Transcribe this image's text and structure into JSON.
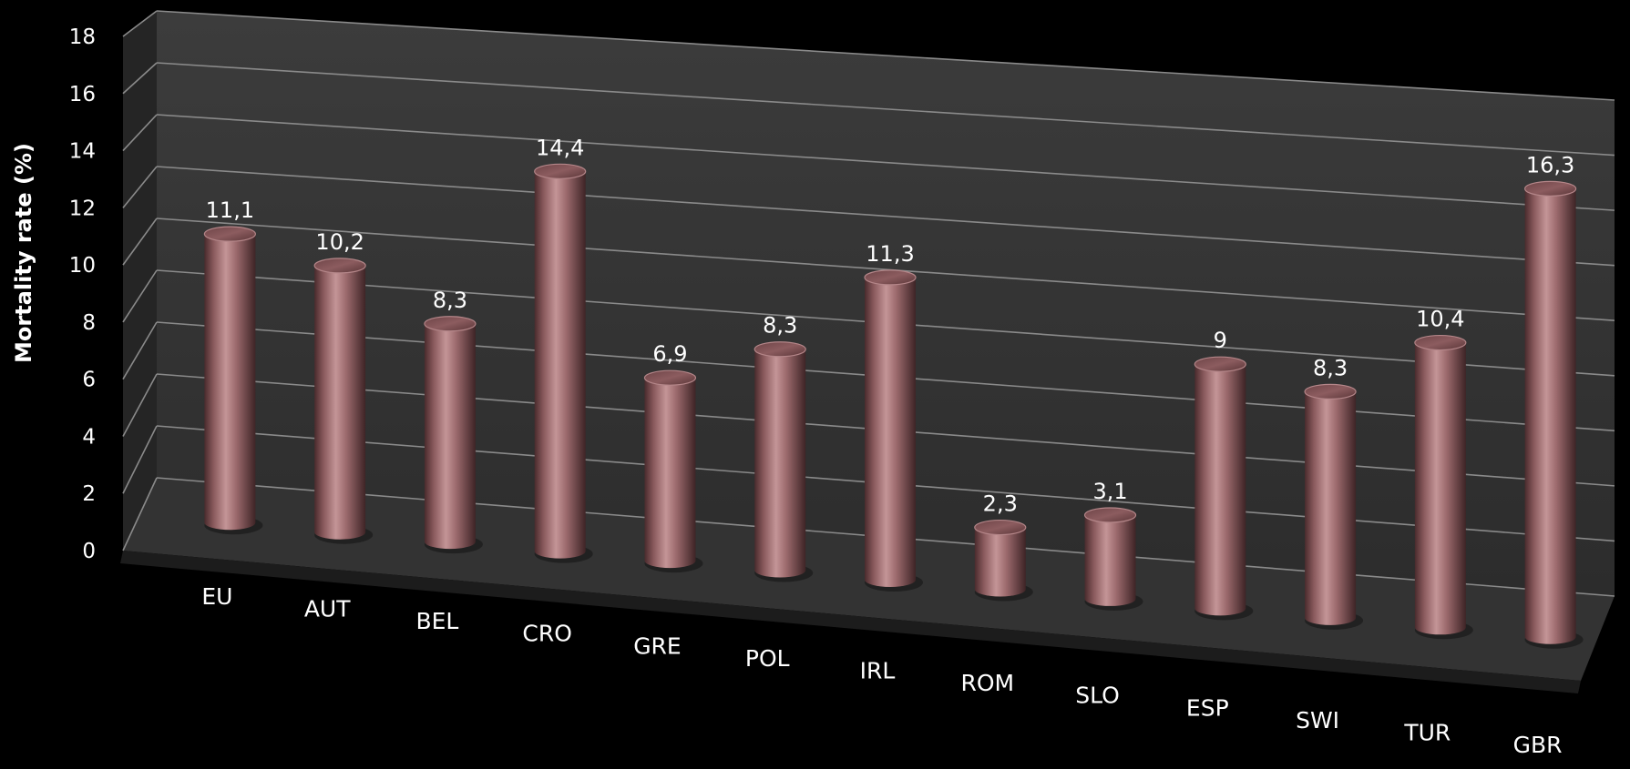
{
  "chart_data": {
    "type": "bar",
    "style": "3d-cylinder",
    "title": "",
    "xlabel": "",
    "ylabel": "Mortality rate (%)",
    "ylim": [
      0,
      18
    ],
    "yticks": [
      "0",
      "2",
      "4",
      "6",
      "8",
      "10",
      "12",
      "14",
      "16",
      "18"
    ],
    "grid": true,
    "legend": "none",
    "categories": [
      "EU",
      "AUT",
      "BEL",
      "CRO",
      "GRE",
      "POL",
      "IRL",
      "ROM",
      "SLO",
      "ESP",
      "SWI",
      "TUR",
      "GBR"
    ],
    "values": [
      11.1,
      10.2,
      8.3,
      14.4,
      6.9,
      8.3,
      11.3,
      2.3,
      3.1,
      9,
      8.3,
      10.4,
      16.3
    ],
    "value_labels": [
      "11,1",
      "10,2",
      "8,3",
      "14,4",
      "6,9",
      "8,3",
      "11,3",
      "2,3",
      "3,1",
      "9",
      "8,3",
      "10,4",
      "16,3"
    ],
    "colors": {
      "background": "#000000",
      "bar": "#9c6a6d",
      "bar_top": "#b07d80",
      "back_wall": "#3a3a3a",
      "side_wall": "#242424",
      "floor": "#303030",
      "gridline": "#8a8a8a",
      "text": "#ffffff"
    }
  }
}
